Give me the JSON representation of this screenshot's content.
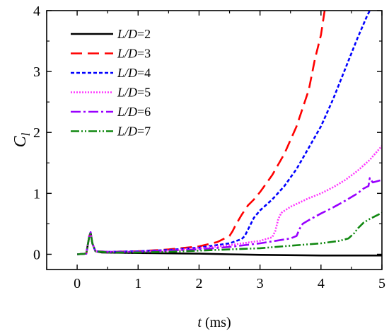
{
  "chart_data": {
    "type": "line",
    "xlabel": {
      "var": "t",
      "unit": " (ms)"
    },
    "ylabel": {
      "var": "C",
      "sub": "l"
    },
    "xlim": [
      -0.5,
      5
    ],
    "ylim": [
      -0.25,
      4
    ],
    "xticks": [
      0,
      1,
      2,
      3,
      4,
      5
    ],
    "yticks": [
      0,
      1,
      2,
      3,
      4
    ],
    "grid": false,
    "legend_position": "top-left",
    "series": [
      {
        "name": "L/D=2",
        "name_var": "L/D",
        "name_val": "=2",
        "color": "#000000",
        "dash": "solid",
        "points": [
          [
            0,
            0
          ],
          [
            0.15,
            0.01
          ],
          [
            0.2,
            0.3
          ],
          [
            0.22,
            0.36
          ],
          [
            0.25,
            0.18
          ],
          [
            0.3,
            0.05
          ],
          [
            0.4,
            0.03
          ],
          [
            1,
            0.02
          ],
          [
            2,
            0.01
          ],
          [
            2.5,
            0.0
          ],
          [
            3,
            -0.01
          ],
          [
            4,
            -0.02
          ],
          [
            5,
            -0.02
          ]
        ]
      },
      {
        "name": "L/D=3",
        "name_var": "L/D",
        "name_val": "=3",
        "color": "#ff0000",
        "dash": "16,8",
        "points": [
          [
            0,
            0
          ],
          [
            0.15,
            0.01
          ],
          [
            0.2,
            0.3
          ],
          [
            0.22,
            0.36
          ],
          [
            0.25,
            0.18
          ],
          [
            0.3,
            0.05
          ],
          [
            0.5,
            0.04
          ],
          [
            1,
            0.05
          ],
          [
            1.5,
            0.08
          ],
          [
            2,
            0.13
          ],
          [
            2.3,
            0.2
          ],
          [
            2.5,
            0.3
          ],
          [
            2.55,
            0.38
          ],
          [
            2.6,
            0.48
          ],
          [
            2.7,
            0.65
          ],
          [
            2.8,
            0.8
          ],
          [
            2.9,
            0.9
          ],
          [
            3,
            1.02
          ],
          [
            3.2,
            1.3
          ],
          [
            3.4,
            1.65
          ],
          [
            3.6,
            2.1
          ],
          [
            3.8,
            2.7
          ],
          [
            3.9,
            3.2
          ],
          [
            4.0,
            3.6
          ],
          [
            4.06,
            4.0
          ]
        ]
      },
      {
        "name": "L/D=4",
        "name_var": "L/D",
        "name_val": "=4",
        "color": "#0000ff",
        "dash": "5,3",
        "points": [
          [
            0,
            0
          ],
          [
            0.15,
            0.01
          ],
          [
            0.2,
            0.3
          ],
          [
            0.22,
            0.36
          ],
          [
            0.25,
            0.18
          ],
          [
            0.3,
            0.05
          ],
          [
            0.5,
            0.04
          ],
          [
            1,
            0.05
          ],
          [
            1.5,
            0.07
          ],
          [
            2,
            0.11
          ],
          [
            2.5,
            0.18
          ],
          [
            2.7,
            0.25
          ],
          [
            2.75,
            0.3
          ],
          [
            2.8,
            0.4
          ],
          [
            2.9,
            0.6
          ],
          [
            3,
            0.72
          ],
          [
            3.2,
            0.9
          ],
          [
            3.4,
            1.12
          ],
          [
            3.6,
            1.4
          ],
          [
            3.8,
            1.75
          ],
          [
            4,
            2.1
          ],
          [
            4.2,
            2.55
          ],
          [
            4.4,
            3.05
          ],
          [
            4.6,
            3.55
          ],
          [
            4.75,
            3.9
          ],
          [
            4.8,
            4.0
          ]
        ]
      },
      {
        "name": "L/D=5",
        "name_var": "L/D",
        "name_val": "=5",
        "color": "#ff33ff",
        "dash": "2,2",
        "points": [
          [
            0,
            0
          ],
          [
            0.15,
            0.01
          ],
          [
            0.2,
            0.3
          ],
          [
            0.22,
            0.36
          ],
          [
            0.25,
            0.18
          ],
          [
            0.3,
            0.05
          ],
          [
            0.5,
            0.04
          ],
          [
            1,
            0.04
          ],
          [
            1.5,
            0.06
          ],
          [
            2,
            0.1
          ],
          [
            2.5,
            0.15
          ],
          [
            3,
            0.22
          ],
          [
            3.2,
            0.28
          ],
          [
            3.25,
            0.38
          ],
          [
            3.3,
            0.58
          ],
          [
            3.35,
            0.68
          ],
          [
            3.5,
            0.78
          ],
          [
            3.8,
            0.92
          ],
          [
            4,
            1.0
          ],
          [
            4.2,
            1.1
          ],
          [
            4.4,
            1.22
          ],
          [
            4.6,
            1.37
          ],
          [
            4.8,
            1.55
          ],
          [
            5,
            1.78
          ]
        ]
      },
      {
        "name": "L/D=6",
        "name_var": "L/D",
        "name_val": "=6",
        "color": "#9900ff",
        "dash": "14,4,3,4",
        "points": [
          [
            0,
            0
          ],
          [
            0.15,
            0.01
          ],
          [
            0.2,
            0.3
          ],
          [
            0.22,
            0.36
          ],
          [
            0.25,
            0.18
          ],
          [
            0.3,
            0.05
          ],
          [
            0.5,
            0.04
          ],
          [
            1,
            0.04
          ],
          [
            1.5,
            0.06
          ],
          [
            2,
            0.08
          ],
          [
            2.5,
            0.12
          ],
          [
            3,
            0.18
          ],
          [
            3.5,
            0.26
          ],
          [
            3.6,
            0.3
          ],
          [
            3.65,
            0.42
          ],
          [
            3.7,
            0.5
          ],
          [
            3.8,
            0.56
          ],
          [
            4,
            0.67
          ],
          [
            4.2,
            0.77
          ],
          [
            4.4,
            0.88
          ],
          [
            4.6,
            1.0
          ],
          [
            4.7,
            1.08
          ],
          [
            4.78,
            1.12
          ],
          [
            4.8,
            1.25
          ],
          [
            4.85,
            1.18
          ],
          [
            5,
            1.22
          ]
        ]
      },
      {
        "name": "L/D=7",
        "name_var": "L/D",
        "name_val": "=7",
        "color": "#118811",
        "dash": "12,3,2,3,2,3",
        "points": [
          [
            0,
            0
          ],
          [
            0.15,
            0.01
          ],
          [
            0.2,
            0.3
          ],
          [
            0.22,
            0.36
          ],
          [
            0.25,
            0.18
          ],
          [
            0.3,
            0.05
          ],
          [
            0.5,
            0.03
          ],
          [
            1,
            0.03
          ],
          [
            1.5,
            0.04
          ],
          [
            2,
            0.06
          ],
          [
            2.5,
            0.08
          ],
          [
            3,
            0.1
          ],
          [
            3.5,
            0.14
          ],
          [
            4,
            0.18
          ],
          [
            4.3,
            0.22
          ],
          [
            4.45,
            0.26
          ],
          [
            4.55,
            0.35
          ],
          [
            4.6,
            0.42
          ],
          [
            4.7,
            0.52
          ],
          [
            4.8,
            0.58
          ],
          [
            5,
            0.68
          ]
        ]
      }
    ]
  }
}
